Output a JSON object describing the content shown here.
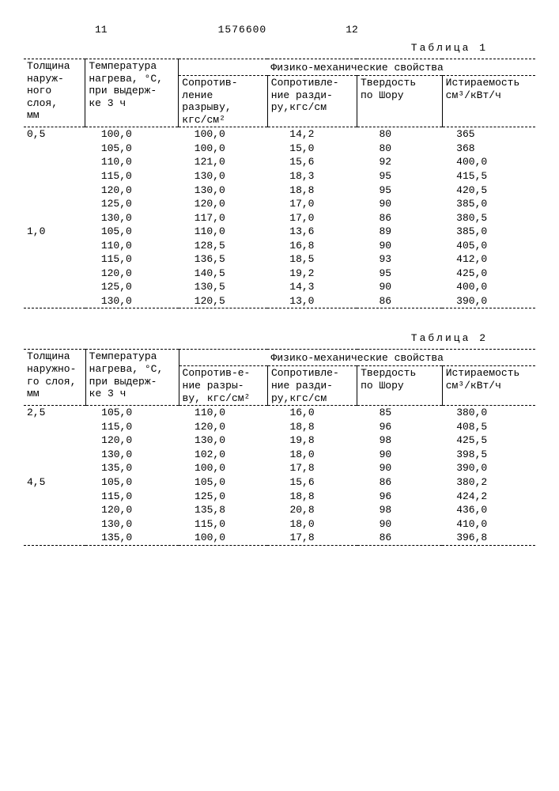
{
  "page": {
    "left_num": "11",
    "doc_num": "1576600",
    "right_num": "12"
  },
  "labels": {
    "table1_caption": "Таблица 1",
    "table2_caption": "Таблица 2",
    "col1_l1": "Толщина",
    "col1_l2": "наруж-",
    "col1_l3": "ного",
    "col1_l4": "слоя,",
    "col1_l5": "мм",
    "col1b_l2": "наружно-",
    "col1b_l3": "го  слоя,",
    "col1b_l4": "мм",
    "col2_l1": "Температура",
    "col2_l2": "нагрева, °С,",
    "col2_l3": "при выдерж-",
    "col2_l4": "ке 3 ч",
    "group_header": "Физико-механические свойства",
    "col3_l1": "Сопротив-",
    "col3_l2": "ление",
    "col3_l3": "разрыву,",
    "col3_l4": "кгс/см²",
    "col3b_l2": "ние разры-",
    "col3b_l3": "ву, кгс/см²",
    "col4_l1": "Сопротивле-",
    "col4_l2": "ние разди-",
    "col4_l3": "ру,кгс/см",
    "col5_l1": "Твердость",
    "col5_l2": "по Шору",
    "col6_l1": "Истираемость",
    "col6_l2": "см³/кВт/ч"
  },
  "table1": {
    "rows": [
      {
        "t": "0,5",
        "temp": "100,0",
        "r": "100,0",
        "z": "14,2",
        "h": "80",
        "i": "365"
      },
      {
        "t": "",
        "temp": "105,0",
        "r": "100,0",
        "z": "15,0",
        "h": "80",
        "i": "368"
      },
      {
        "t": "",
        "temp": "110,0",
        "r": "121,0",
        "z": "15,6",
        "h": "92",
        "i": "400,0"
      },
      {
        "t": "",
        "temp": "115,0",
        "r": "130,0",
        "z": "18,3",
        "h": "95",
        "i": "415,5"
      },
      {
        "t": "",
        "temp": "120,0",
        "r": "130,0",
        "z": "18,8",
        "h": "95",
        "i": "420,5"
      },
      {
        "t": "",
        "temp": "125,0",
        "r": "120,0",
        "z": "17,0",
        "h": "90",
        "i": "385,0"
      },
      {
        "t": "",
        "temp": "130,0",
        "r": "117,0",
        "z": "17,0",
        "h": "86",
        "i": "380,5"
      },
      {
        "t": "1,0",
        "temp": "105,0",
        "r": "110,0",
        "z": "13,6",
        "h": "89",
        "i": "385,0"
      },
      {
        "t": "",
        "temp": "110,0",
        "r": "128,5",
        "z": "16,8",
        "h": "90",
        "i": "405,0"
      },
      {
        "t": "",
        "temp": "115,0",
        "r": "136,5",
        "z": "18,5",
        "h": "93",
        "i": "412,0"
      },
      {
        "t": "",
        "temp": "120,0",
        "r": "140,5",
        "z": "19,2",
        "h": "95",
        "i": "425,0"
      },
      {
        "t": "",
        "temp": "125,0",
        "r": "130,5",
        "z": "14,3",
        "h": "90",
        "i": "400,0"
      },
      {
        "t": "",
        "temp": "130,0",
        "r": "120,5",
        "z": "13,0",
        "h": "86",
        "i": "390,0"
      }
    ]
  },
  "table2": {
    "rows": [
      {
        "t": "2,5",
        "temp": "105,0",
        "r": "110,0",
        "z": "16,0",
        "h": "85",
        "i": "380,0"
      },
      {
        "t": "",
        "temp": "115,0",
        "r": "120,0",
        "z": "18,8",
        "h": "96",
        "i": "408,5"
      },
      {
        "t": "",
        "temp": "120,0",
        "r": "130,0",
        "z": "19,8",
        "h": "98",
        "i": "425,5"
      },
      {
        "t": "",
        "temp": "130,0",
        "r": "102,0",
        "z": "18,0",
        "h": "90",
        "i": "398,5"
      },
      {
        "t": "",
        "temp": "135,0",
        "r": "100,0",
        "z": "17,8",
        "h": "90",
        "i": "390,0"
      },
      {
        "t": "4,5",
        "temp": "105,0",
        "r": "105,0",
        "z": "15,6",
        "h": "86",
        "i": "380,2"
      },
      {
        "t": "",
        "temp": "115,0",
        "r": "125,0",
        "z": "18,8",
        "h": "96",
        "i": "424,2"
      },
      {
        "t": "",
        "temp": "120,0",
        "r": "135,8",
        "z": "20,8",
        "h": "98",
        "i": "436,0"
      },
      {
        "t": "",
        "temp": "130,0",
        "r": "115,0",
        "z": "18,0",
        "h": "90",
        "i": "410,0"
      },
      {
        "t": "",
        "temp": "135,0",
        "r": "100,0",
        "z": "17,8",
        "h": "86",
        "i": "396,8"
      }
    ]
  }
}
